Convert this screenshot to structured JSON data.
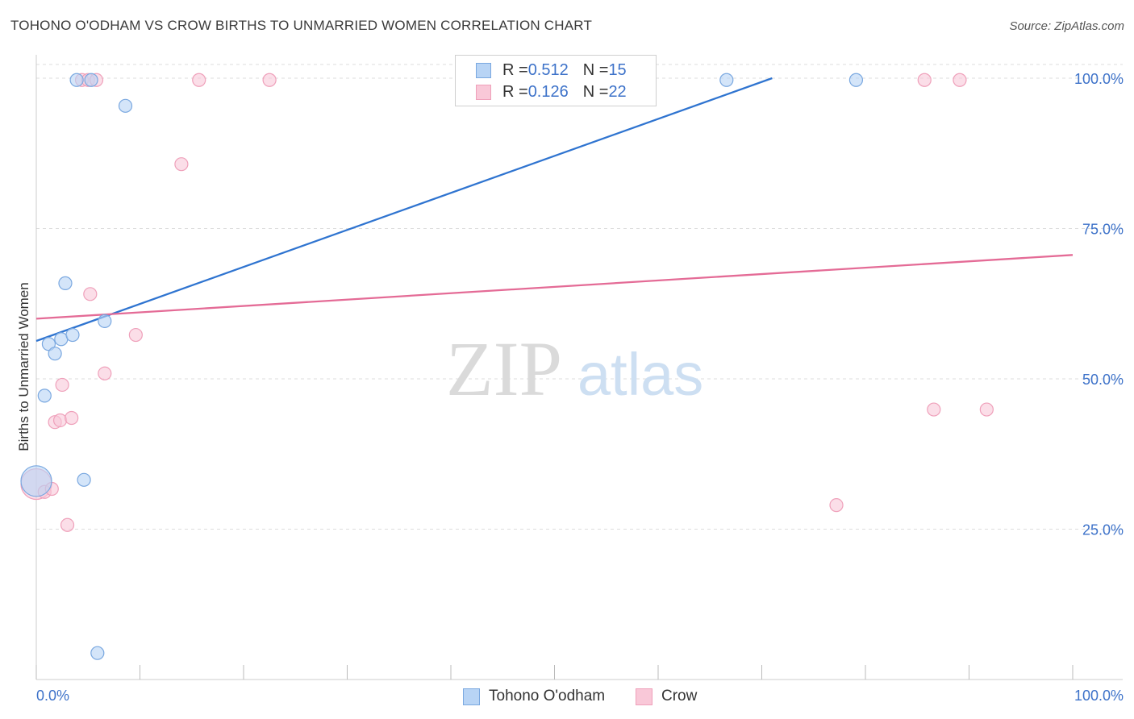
{
  "header": {
    "title": "TOHONO O'ODHAM VS CROW BIRTHS TO UNMARRIED WOMEN CORRELATION CHART",
    "source": "Source: ZipAtlas.com"
  },
  "watermark": {
    "zip": "ZIP",
    "atlas": "atlas"
  },
  "colors": {
    "blue_fill": "#b8d4f5",
    "blue_stroke": "#7aa8e0",
    "blue_line": "#2f74d0",
    "pink_fill": "#f9c8d8",
    "pink_stroke": "#efa0ba",
    "pink_line": "#e46b96",
    "tick_label": "#3d72c9",
    "grid": "#dddddd"
  },
  "legend": {
    "rows": [
      {
        "r_label": "R = ",
        "r_value": "0.512",
        "n_label": "N = ",
        "n_value": "15"
      },
      {
        "r_label": "R = ",
        "r_value": "0.126",
        "n_label": "N = ",
        "n_value": "22"
      }
    ]
  },
  "bottom_legend": {
    "series1": "Tohono O'odham",
    "series2": "Crow"
  },
  "chart_data": {
    "type": "scatter",
    "title": "TOHONO O'ODHAM VS CROW BIRTHS TO UNMARRIED WOMEN CORRELATION CHART",
    "xlabel": "",
    "ylabel": "Births to Unmarried Women",
    "xlim": [
      0,
      100
    ],
    "ylim": [
      0,
      102
    ],
    "x_tick_labels": [
      "0.0%",
      "100.0%"
    ],
    "y_ticks": [
      25,
      50,
      75,
      100
    ],
    "y_tick_labels": [
      "25.0%",
      "50.0%",
      "75.0%",
      "100.0%"
    ],
    "grid": true,
    "series": [
      {
        "name": "Tohono O'odham",
        "r": 0.512,
        "n": 15,
        "points": [
          {
            "x": 0.0,
            "y": 33.0,
            "big": true
          },
          {
            "x": 0.8,
            "y": 47.2
          },
          {
            "x": 1.2,
            "y": 55.8
          },
          {
            "x": 1.8,
            "y": 54.2
          },
          {
            "x": 2.4,
            "y": 56.6
          },
          {
            "x": 2.8,
            "y": 65.9
          },
          {
            "x": 3.5,
            "y": 57.3
          },
          {
            "x": 4.6,
            "y": 33.2
          },
          {
            "x": 5.9,
            "y": 4.4
          },
          {
            "x": 6.6,
            "y": 59.6
          },
          {
            "x": 8.6,
            "y": 95.4
          },
          {
            "x": 3.9,
            "y": 99.7
          },
          {
            "x": 5.3,
            "y": 99.7
          },
          {
            "x": 66.6,
            "y": 99.7
          },
          {
            "x": 79.1,
            "y": 99.7
          }
        ],
        "trend": {
          "x1": 0,
          "y1": 56.3,
          "x2": 71.0,
          "y2": 100.0
        }
      },
      {
        "name": "Crow",
        "r": 0.126,
        "n": 22,
        "points": [
          {
            "x": 0.0,
            "y": 32.5,
            "big": true
          },
          {
            "x": 0.8,
            "y": 31.2
          },
          {
            "x": 1.5,
            "y": 31.7
          },
          {
            "x": 1.8,
            "y": 42.8
          },
          {
            "x": 2.3,
            "y": 43.1
          },
          {
            "x": 2.5,
            "y": 49.0
          },
          {
            "x": 3.0,
            "y": 25.7
          },
          {
            "x": 3.4,
            "y": 43.5
          },
          {
            "x": 5.2,
            "y": 64.1
          },
          {
            "x": 6.6,
            "y": 50.9
          },
          {
            "x": 9.6,
            "y": 57.3
          },
          {
            "x": 14.0,
            "y": 85.7
          },
          {
            "x": 4.4,
            "y": 99.7
          },
          {
            "x": 5.0,
            "y": 99.7
          },
          {
            "x": 5.8,
            "y": 99.7
          },
          {
            "x": 15.7,
            "y": 99.7
          },
          {
            "x": 22.5,
            "y": 99.7
          },
          {
            "x": 85.7,
            "y": 99.7
          },
          {
            "x": 89.1,
            "y": 99.7
          },
          {
            "x": 77.2,
            "y": 29.0
          },
          {
            "x": 86.6,
            "y": 44.9
          },
          {
            "x": 91.7,
            "y": 44.9
          }
        ],
        "trend": {
          "x1": 0,
          "y1": 60.0,
          "x2": 100,
          "y2": 70.6
        }
      }
    ]
  }
}
